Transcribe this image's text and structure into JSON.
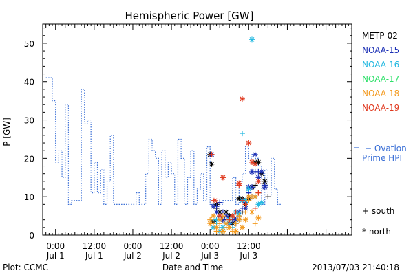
{
  "chart_data": {
    "type": "line",
    "title": "Hemispheric Power [GW]",
    "ylabel": "P [GW]",
    "xlabel": "Date and Time",
    "ylim": [
      0,
      55
    ],
    "yticks": [
      0,
      10,
      20,
      30,
      40,
      50
    ],
    "xlim": [
      -4,
      92
    ],
    "xticks": [
      {
        "x": 0,
        "time": "0:00",
        "date": "Jul 1"
      },
      {
        "x": 12,
        "time": "12:00",
        "date": "Jul 1"
      },
      {
        "x": 24,
        "time": "0:00",
        "date": "Jul 2"
      },
      {
        "x": 36,
        "time": "12:00",
        "date": "Jul 2"
      },
      {
        "x": 48,
        "time": "0:00",
        "date": "Jul 3"
      },
      {
        "x": 60,
        "time": "12:00",
        "date": "Jul 3"
      }
    ],
    "ovation": {
      "name_line1": "Ovation",
      "name_line2": "Prime HPI",
      "color": "#3a6fd6",
      "points": [
        [
          -3,
          41
        ],
        [
          -1,
          35
        ],
        [
          0,
          19
        ],
        [
          1,
          22
        ],
        [
          2,
          15
        ],
        [
          3,
          34
        ],
        [
          4,
          8
        ],
        [
          5,
          9
        ],
        [
          6,
          9
        ],
        [
          7,
          9
        ],
        [
          8,
          38
        ],
        [
          9,
          29
        ],
        [
          10,
          30
        ],
        [
          11,
          11
        ],
        [
          12,
          19
        ],
        [
          13,
          11
        ],
        [
          14,
          17
        ],
        [
          15,
          8
        ],
        [
          16,
          14
        ],
        [
          17,
          26
        ],
        [
          18,
          8
        ],
        [
          19,
          8
        ],
        [
          20,
          8
        ],
        [
          21,
          8
        ],
        [
          22,
          8
        ],
        [
          23,
          8
        ],
        [
          24,
          8
        ],
        [
          25,
          11
        ],
        [
          26,
          8
        ],
        [
          27,
          8
        ],
        [
          28,
          16
        ],
        [
          29,
          25
        ],
        [
          30,
          22
        ],
        [
          31,
          20
        ],
        [
          32,
          8
        ],
        [
          33,
          22
        ],
        [
          34,
          15
        ],
        [
          35,
          19
        ],
        [
          36,
          16
        ],
        [
          37,
          8
        ],
        [
          38,
          25
        ],
        [
          39,
          20
        ],
        [
          40,
          8
        ],
        [
          41,
          15
        ],
        [
          42,
          22
        ],
        [
          43,
          8
        ],
        [
          44,
          12
        ],
        [
          45,
          16
        ],
        [
          46,
          9
        ],
        [
          47,
          23
        ],
        [
          48,
          8
        ],
        [
          49,
          8
        ],
        [
          50,
          8
        ],
        [
          51,
          8
        ],
        [
          52,
          9
        ],
        [
          53,
          9
        ],
        [
          54,
          9
        ],
        [
          55,
          15
        ],
        [
          56,
          8
        ],
        [
          57,
          14
        ],
        [
          58,
          16
        ],
        [
          59,
          23
        ],
        [
          60,
          20
        ],
        [
          61,
          21
        ],
        [
          62,
          20
        ],
        [
          63,
          18
        ],
        [
          64,
          8
        ],
        [
          65,
          17
        ],
        [
          66,
          10
        ],
        [
          67,
          20
        ],
        [
          68,
          12
        ],
        [
          69,
          8
        ]
      ]
    },
    "satellites": [
      {
        "name": "METP-02",
        "color": "#000000",
        "south": [
          [
            49,
            3
          ],
          [
            50,
            7
          ],
          [
            51,
            5
          ],
          [
            52,
            4
          ],
          [
            53,
            5
          ],
          [
            54,
            3
          ],
          [
            55,
            4
          ],
          [
            56,
            3
          ],
          [
            58,
            6
          ],
          [
            59,
            7
          ],
          [
            61,
            10
          ],
          [
            62,
            13
          ],
          [
            65,
            13
          ],
          [
            66,
            10
          ]
        ],
        "north": [
          [
            48,
            21
          ],
          [
            48.5,
            18.5
          ],
          [
            49,
            3.5
          ],
          [
            50,
            8
          ],
          [
            51,
            6
          ],
          [
            52,
            4
          ],
          [
            53,
            6
          ],
          [
            54,
            5
          ],
          [
            55,
            3
          ],
          [
            56,
            4
          ],
          [
            57,
            9.5
          ],
          [
            58,
            9.5
          ],
          [
            59,
            8
          ],
          [
            60,
            9.5
          ],
          [
            61,
            12.5
          ],
          [
            62,
            19
          ],
          [
            63,
            19
          ],
          [
            64,
            16
          ],
          [
            65,
            14
          ]
        ]
      },
      {
        "name": "NOAA-15",
        "color": "#1b2fb5",
        "south": [
          [
            50,
            7.5
          ],
          [
            51,
            8.5
          ],
          [
            52,
            6
          ],
          [
            53,
            5
          ],
          [
            54,
            3
          ],
          [
            55,
            4
          ],
          [
            56,
            6
          ],
          [
            57,
            5
          ],
          [
            58,
            7
          ],
          [
            59,
            8.5
          ],
          [
            60,
            11
          ],
          [
            61,
            12.5
          ],
          [
            62,
            16.5
          ],
          [
            63,
            16.5
          ],
          [
            65,
            13
          ]
        ],
        "north": [
          [
            48.5,
            21
          ],
          [
            49,
            7.5
          ],
          [
            50,
            6
          ],
          [
            51,
            5
          ],
          [
            52,
            4
          ],
          [
            53,
            5
          ],
          [
            54,
            3
          ],
          [
            55,
            5
          ],
          [
            56,
            4
          ],
          [
            57,
            6
          ],
          [
            58,
            9
          ],
          [
            59,
            7
          ],
          [
            60,
            12.5
          ],
          [
            61,
            16.5
          ],
          [
            62,
            21
          ],
          [
            63,
            15
          ],
          [
            64,
            16.5
          ],
          [
            65,
            12.5
          ]
        ]
      },
      {
        "name": "NOAA-16",
        "color": "#22b8e0",
        "south": [
          [
            49,
            4
          ],
          [
            50,
            3
          ],
          [
            51,
            2
          ],
          [
            52,
            1
          ],
          [
            53,
            2
          ],
          [
            54,
            3
          ],
          [
            55,
            2
          ],
          [
            56,
            3
          ],
          [
            57,
            4
          ],
          [
            58,
            26.5
          ]
        ],
        "north": [
          [
            49,
            2
          ],
          [
            50,
            4
          ],
          [
            51,
            1
          ],
          [
            52,
            2
          ],
          [
            53,
            3
          ],
          [
            54,
            4
          ],
          [
            55,
            5
          ],
          [
            56,
            6
          ],
          [
            57,
            5.5
          ],
          [
            58,
            9
          ],
          [
            59,
            9
          ],
          [
            60,
            12
          ],
          [
            61,
            51
          ],
          [
            62,
            10
          ],
          [
            63,
            8
          ],
          [
            64,
            8.5
          ]
        ]
      },
      {
        "name": "NOAA-17",
        "color": "#2ee06a",
        "south": [],
        "north": []
      },
      {
        "name": "NOAA-18",
        "color": "#f39a1f",
        "south": [
          [
            48,
            4
          ],
          [
            49,
            3
          ],
          [
            50,
            1
          ],
          [
            51,
            3
          ],
          [
            52,
            5
          ],
          [
            53,
            2
          ],
          [
            54,
            4
          ],
          [
            55,
            1
          ],
          [
            56,
            3
          ],
          [
            57,
            5
          ],
          [
            58,
            2
          ],
          [
            59,
            6
          ],
          [
            60,
            9
          ],
          [
            61,
            10
          ],
          [
            62,
            3
          ],
          [
            63,
            11
          ]
        ],
        "north": [
          [
            48,
            3
          ],
          [
            49,
            5
          ],
          [
            50,
            2
          ],
          [
            51,
            4
          ],
          [
            52,
            1
          ],
          [
            53,
            3
          ],
          [
            54,
            2
          ],
          [
            55,
            5
          ],
          [
            56,
            1
          ],
          [
            57,
            4
          ],
          [
            58,
            2
          ],
          [
            59,
            4
          ],
          [
            60,
            10
          ],
          [
            61,
            6
          ],
          [
            62,
            10
          ],
          [
            63,
            4.5
          ]
        ]
      },
      {
        "name": "NOAA-19",
        "color": "#e03a20",
        "south": [
          [
            48.5,
            21
          ],
          [
            49,
            9
          ],
          [
            52,
            15
          ],
          [
            54,
            4
          ],
          [
            56,
            6
          ],
          [
            57,
            13
          ],
          [
            58,
            9
          ],
          [
            59,
            8
          ],
          [
            62,
            7
          ],
          [
            63,
            11
          ]
        ],
        "north": [
          [
            49.5,
            9
          ],
          [
            51,
            5
          ],
          [
            52,
            15
          ],
          [
            55,
            5
          ],
          [
            57,
            13.5
          ],
          [
            58,
            35.5
          ],
          [
            60,
            24
          ],
          [
            61,
            19
          ],
          [
            62,
            18.5
          ],
          [
            63,
            14
          ]
        ]
      }
    ],
    "legend_placement": "right",
    "symbol_key": [
      {
        "symbol": "+",
        "label": "south"
      },
      {
        "symbol": "*",
        "label": "north"
      }
    ],
    "footer_left": "Plot: CCMC",
    "footer_right": "2013/07/03 21:40:18"
  }
}
